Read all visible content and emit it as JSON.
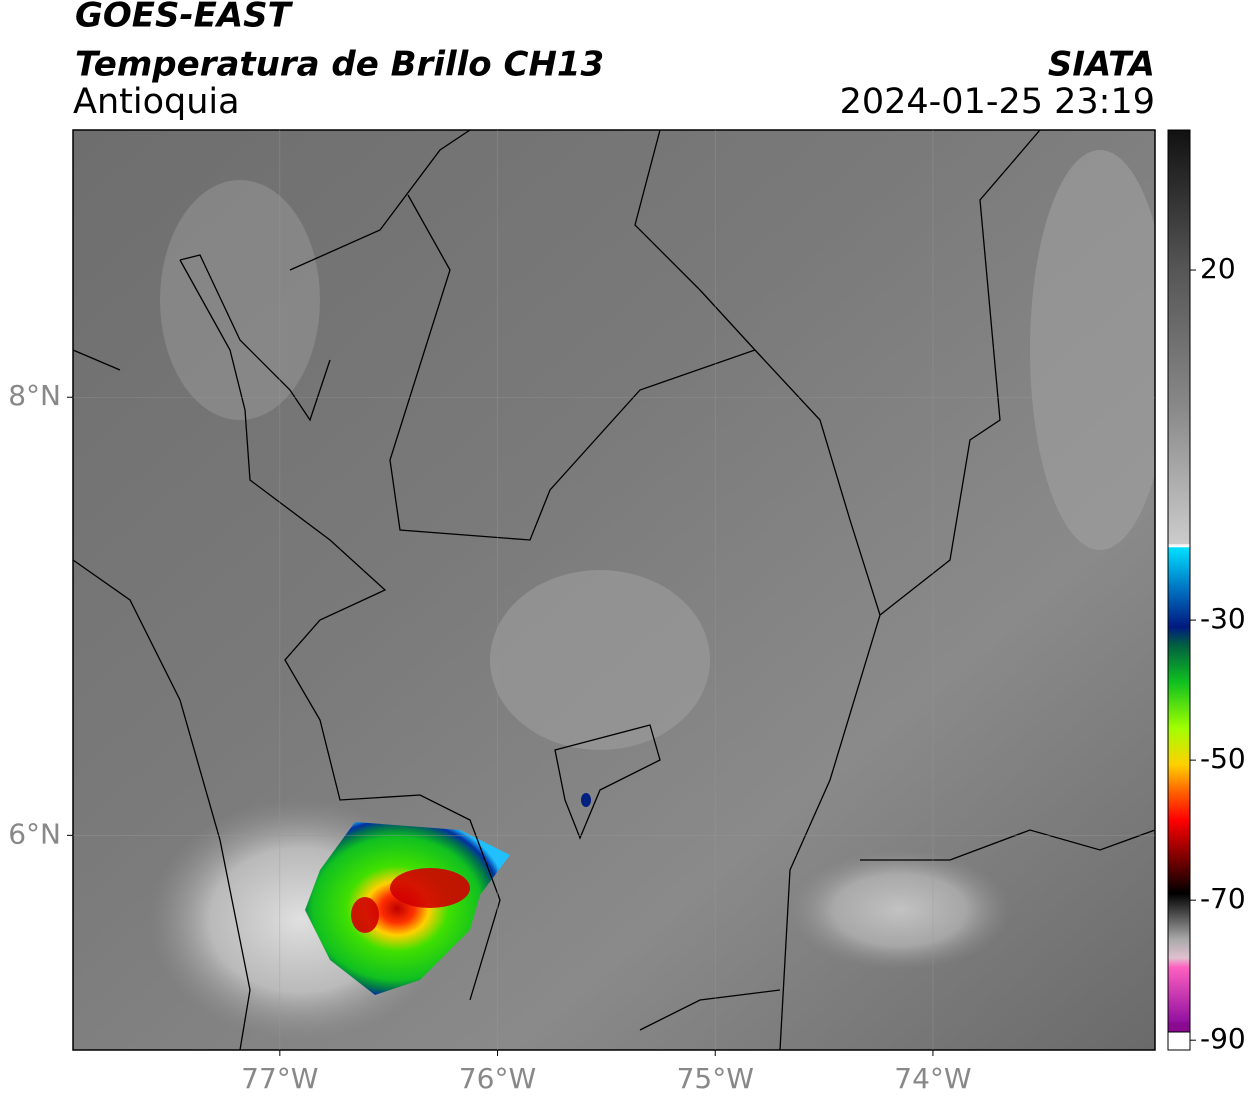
{
  "header": {
    "title": "GOES-EAST",
    "subtitle": "Temperatura de Brillo CH13",
    "region": "Antioquia",
    "source": "SIATA",
    "datetime": "2024-01-25 23:19"
  },
  "map": {
    "xlim": [
      -77.95,
      -72.98
    ],
    "ylim": [
      5.02,
      9.22
    ],
    "xticks": [
      {
        "value": -77,
        "label": "77°W"
      },
      {
        "value": -76,
        "label": "76°W"
      },
      {
        "value": -75,
        "label": "75°W"
      },
      {
        "value": -74,
        "label": "74°W"
      }
    ],
    "yticks": [
      {
        "value": 8,
        "label": "8°N"
      },
      {
        "value": 6,
        "label": "6°N"
      }
    ],
    "grid": true
  },
  "colorbar": {
    "lim": [
      -91.4,
      40
    ],
    "ticks": [
      20,
      -30,
      -50,
      -70,
      -90
    ]
  }
}
